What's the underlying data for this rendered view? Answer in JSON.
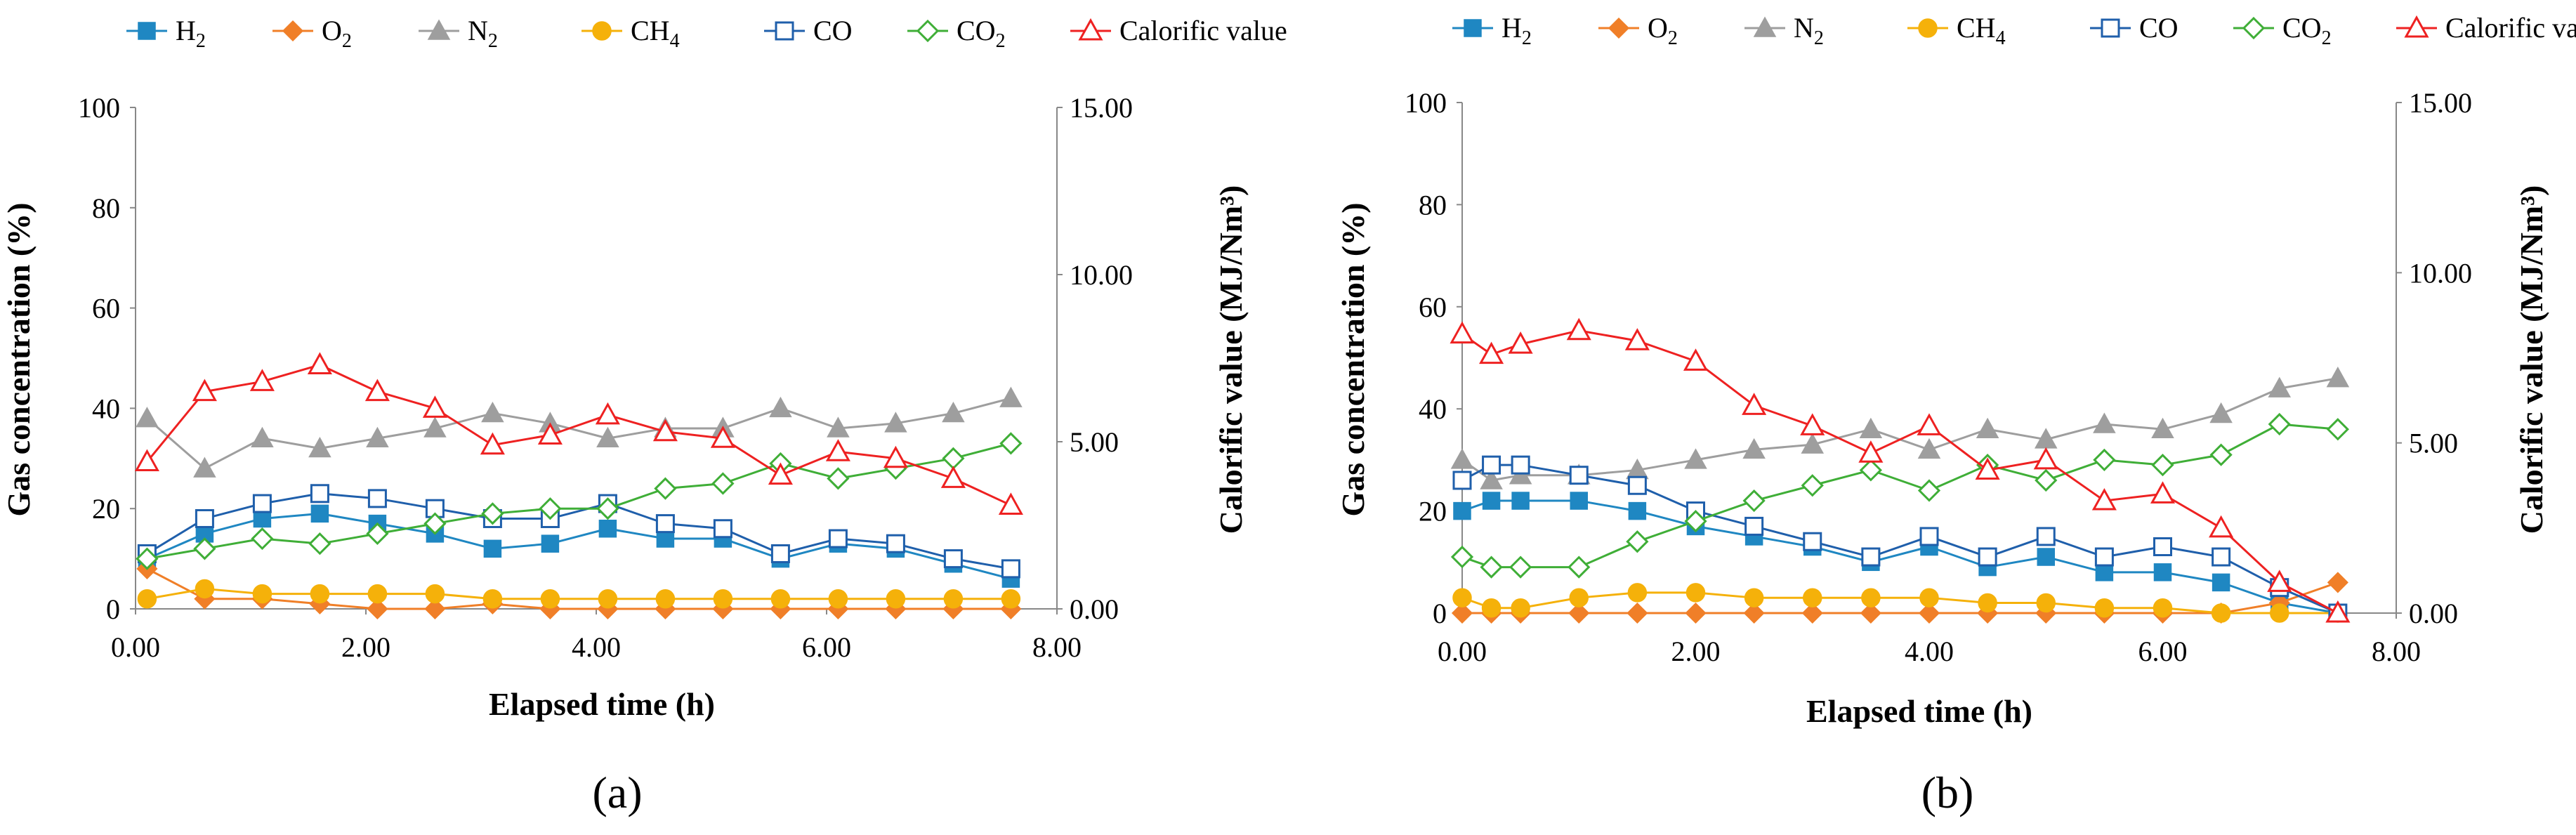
{
  "figure": {
    "panel_labels": [
      "(a)",
      "(b)"
    ]
  },
  "legend": [
    {
      "key": "H2",
      "base": "H",
      "sub": "2",
      "color": "#1f87c2",
      "marker": "square-filled"
    },
    {
      "key": "O2",
      "base": "O",
      "sub": "2",
      "color": "#f07f28",
      "marker": "diamond-filled"
    },
    {
      "key": "N2",
      "base": "N",
      "sub": "2",
      "color": "#9e9e9e",
      "marker": "triangle-filled"
    },
    {
      "key": "CH4",
      "base": "CH",
      "sub": "4",
      "color": "#f5b10a",
      "marker": "circle-filled"
    },
    {
      "key": "CO",
      "base": "CO",
      "sub": "",
      "color": "#1f5fab",
      "marker": "square-open"
    },
    {
      "key": "CO2",
      "base": "CO",
      "sub": "2",
      "color": "#3fae37",
      "marker": "diamond-open"
    },
    {
      "key": "Calorific",
      "base": "Calorific value",
      "sub": "",
      "color": "#ee2121",
      "marker": "triangle-open"
    }
  ],
  "chart_data": [
    {
      "type": "line",
      "panel": "(a)",
      "xlabel": "Elapsed time (h)",
      "ylabel": "Gas concentration (%)",
      "y2label": "Calorific value (MJ/Nm³)",
      "xlim": [
        0,
        8
      ],
      "ylim": [
        0,
        100
      ],
      "y2lim": [
        0,
        15
      ],
      "xticks": [
        "0.00",
        "2.00",
        "4.00",
        "6.00",
        "8.00"
      ],
      "yticks": [
        "0",
        "20",
        "40",
        "60",
        "80",
        "100"
      ],
      "y2ticks": [
        "0.00",
        "5.00",
        "10.00",
        "15.00"
      ],
      "x": [
        0.1,
        0.6,
        1.1,
        1.6,
        2.1,
        2.6,
        3.1,
        3.6,
        4.1,
        4.6,
        5.1,
        5.6,
        6.1,
        6.6,
        7.1,
        7.6
      ],
      "series": [
        {
          "name": "H2",
          "axis": "left",
          "values": [
            10,
            15,
            18,
            19,
            17,
            15,
            12,
            13,
            16,
            14,
            14,
            10,
            13,
            12,
            9,
            6
          ]
        },
        {
          "name": "O2",
          "axis": "left",
          "values": [
            8,
            2,
            2,
            1,
            0,
            0,
            1,
            0,
            0,
            0,
            0,
            0,
            0,
            0,
            0,
            0
          ]
        },
        {
          "name": "N2",
          "axis": "left",
          "values": [
            38,
            28,
            34,
            32,
            34,
            36,
            39,
            37,
            34,
            36,
            36,
            40,
            36,
            37,
            39,
            42
          ]
        },
        {
          "name": "CH4",
          "axis": "left",
          "values": [
            2,
            4,
            3,
            3,
            3,
            3,
            2,
            2,
            2,
            2,
            2,
            2,
            2,
            2,
            2,
            2
          ]
        },
        {
          "name": "CO",
          "axis": "left",
          "values": [
            11,
            18,
            21,
            23,
            22,
            20,
            18,
            18,
            21,
            17,
            16,
            11,
            14,
            13,
            10,
            8
          ]
        },
        {
          "name": "CO2",
          "axis": "left",
          "values": [
            10,
            12,
            14,
            13,
            15,
            17,
            19,
            20,
            20,
            24,
            25,
            29,
            26,
            28,
            30,
            33
          ]
        },
        {
          "name": "Calorific value",
          "axis": "right",
          "values": [
            4.4,
            6.5,
            6.8,
            7.3,
            6.5,
            6.0,
            4.9,
            5.2,
            5.8,
            5.3,
            5.1,
            4.0,
            4.7,
            4.5,
            3.9,
            3.1
          ]
        }
      ]
    },
    {
      "type": "line",
      "panel": "(b)",
      "xlabel": "Elapsed time (h)",
      "ylabel": "Gas concentration (%)",
      "y2label": "Calorific value (MJ/Nm³)",
      "xlim": [
        0,
        8
      ],
      "ylim": [
        0,
        100
      ],
      "y2lim": [
        0,
        15
      ],
      "xticks": [
        "0.00",
        "2.00",
        "4.00",
        "6.00",
        "8.00"
      ],
      "yticks": [
        "0",
        "20",
        "40",
        "60",
        "80",
        "100"
      ],
      "y2ticks": [
        "0.00",
        "5.00",
        "10.00",
        "15.00"
      ],
      "x": [
        0,
        0.25,
        0.5,
        1,
        1.5,
        2,
        2.5,
        3,
        3.5,
        4,
        4.5,
        5,
        5.5,
        6,
        6.5,
        7,
        7.5
      ],
      "series": [
        {
          "name": "H2",
          "axis": "left",
          "values": [
            20,
            22,
            22,
            22,
            20,
            17,
            15,
            13,
            10,
            13,
            9,
            11,
            8,
            8,
            6,
            2,
            0
          ]
        },
        {
          "name": "O2",
          "axis": "left",
          "values": [
            0,
            0,
            0,
            0,
            0,
            0,
            0,
            0,
            0,
            0,
            0,
            0,
            0,
            0,
            0,
            2,
            6
          ]
        },
        {
          "name": "N2",
          "axis": "left",
          "values": [
            30,
            26,
            27,
            27,
            28,
            30,
            32,
            33,
            36,
            32,
            36,
            34,
            37,
            36,
            39,
            44,
            46
          ]
        },
        {
          "name": "CH4",
          "axis": "left",
          "values": [
            3,
            1,
            1,
            3,
            4,
            4,
            3,
            3,
            3,
            3,
            2,
            2,
            1,
            1,
            0,
            0,
            0
          ]
        },
        {
          "name": "CO",
          "axis": "left",
          "values": [
            26,
            29,
            29,
            27,
            25,
            20,
            17,
            14,
            11,
            15,
            11,
            15,
            11,
            13,
            11,
            5,
            0
          ]
        },
        {
          "name": "CO2",
          "axis": "left",
          "values": [
            11,
            9,
            9,
            9,
            14,
            18,
            22,
            25,
            28,
            24,
            29,
            26,
            30,
            29,
            31,
            37,
            36
          ]
        },
        {
          "name": "Calorific value",
          "axis": "right",
          "values": [
            8.2,
            7.6,
            7.9,
            8.3,
            8.0,
            7.4,
            6.1,
            5.5,
            4.7,
            5.5,
            4.2,
            4.5,
            3.3,
            3.5,
            2.5,
            0.9,
            0.0
          ]
        }
      ]
    }
  ]
}
